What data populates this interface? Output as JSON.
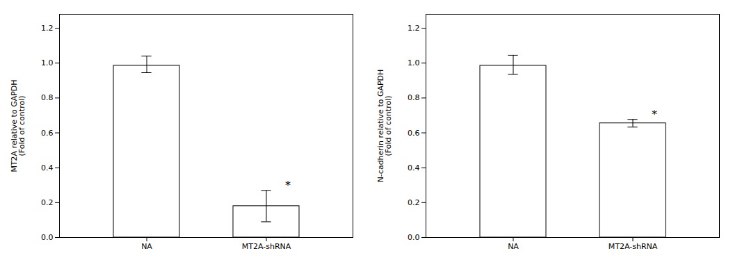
{
  "chart_data": [
    {
      "type": "bar",
      "ylabel": "MT2A relative to GAPDH\n(Fold of control)",
      "categories": [
        "NA",
        "MT2A-shRNA"
      ],
      "values": [
        0.985,
        0.18
      ],
      "errors_upper": [
        0.055,
        0.09
      ],
      "errors_lower": [
        0.04,
        0.09
      ],
      "annotations": [
        {
          "category": "MT2A-shRNA",
          "text": "*"
        }
      ],
      "color": "#ffffff",
      "ylim": [
        0.0,
        1.28
      ],
      "yticks": [
        {
          "value": 0.0,
          "label": "0.0"
        },
        0.2,
        0.4,
        0.6,
        0.8,
        {
          "value": 1.0,
          "label": "1.0"
        },
        1.2
      ],
      "grid": false
    },
    {
      "type": "bar",
      "ylabel": "N-cadherin relative to GAPDH\n(Fold of control)",
      "categories": [
        "NA",
        "MT2A-shRNA"
      ],
      "values": [
        0.985,
        0.655
      ],
      "errors_upper": [
        0.06,
        0.022
      ],
      "errors_lower": [
        0.05,
        0.022
      ],
      "annotations": [
        {
          "category": "MT2A-shRNA",
          "text": "*"
        }
      ],
      "color": "#ffffff",
      "ylim": [
        0.0,
        1.28
      ],
      "yticks": [
        {
          "value": 0.0,
          "label": "0.0"
        },
        0.2,
        0.4,
        0.6,
        0.8,
        {
          "value": 1.0,
          "label": "1.0"
        },
        1.2
      ],
      "grid": false
    }
  ]
}
